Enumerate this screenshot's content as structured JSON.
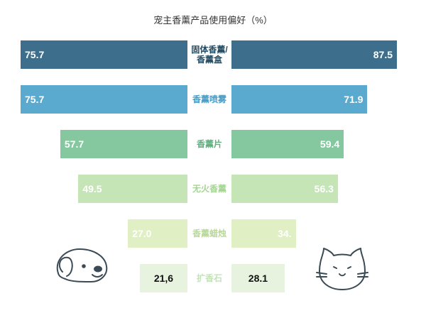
{
  "chart_data": {
    "type": "bar",
    "title": "宠主香薰产品使用偏好（%）",
    "categories": [
      "固体香薰/香薰盒",
      "香薰喷雾",
      "香薰片",
      "无火香薰",
      "香薰蜡烛",
      "扩香石"
    ],
    "series": [
      {
        "values": [
          75.7,
          75.7,
          57.7,
          49.5,
          27.0,
          21.6
        ],
        "labels": [
          "75.7",
          "75.7",
          "57.7",
          "49.5",
          "27.0",
          "21,6"
        ]
      },
      {
        "values": [
          87.5,
          71.9,
          59.4,
          56.3,
          34.0,
          28.1
        ],
        "labels": [
          "87.5",
          "71.9",
          "59.4",
          "56.3",
          "34.",
          "28.1"
        ]
      }
    ],
    "xlim": [
      0,
      100
    ],
    "row_colors": [
      "#3d6e8c",
      "#5aaad0",
      "#85c8a0",
      "#c6e5b6",
      "#e1efc4",
      "#e7f3df"
    ],
    "text_colors": [
      "#ffffff",
      "#ffffff",
      "#ffffff",
      "#ffffff",
      "#ffffff",
      "#111111"
    ],
    "label_colors": [
      "#244a60",
      "#4a9cc4",
      "#5fb07e",
      "#a5d494",
      "#b8d998",
      "#c4e4b8"
    ]
  },
  "icons": {
    "left": "dog-icon",
    "right": "cat-icon"
  }
}
